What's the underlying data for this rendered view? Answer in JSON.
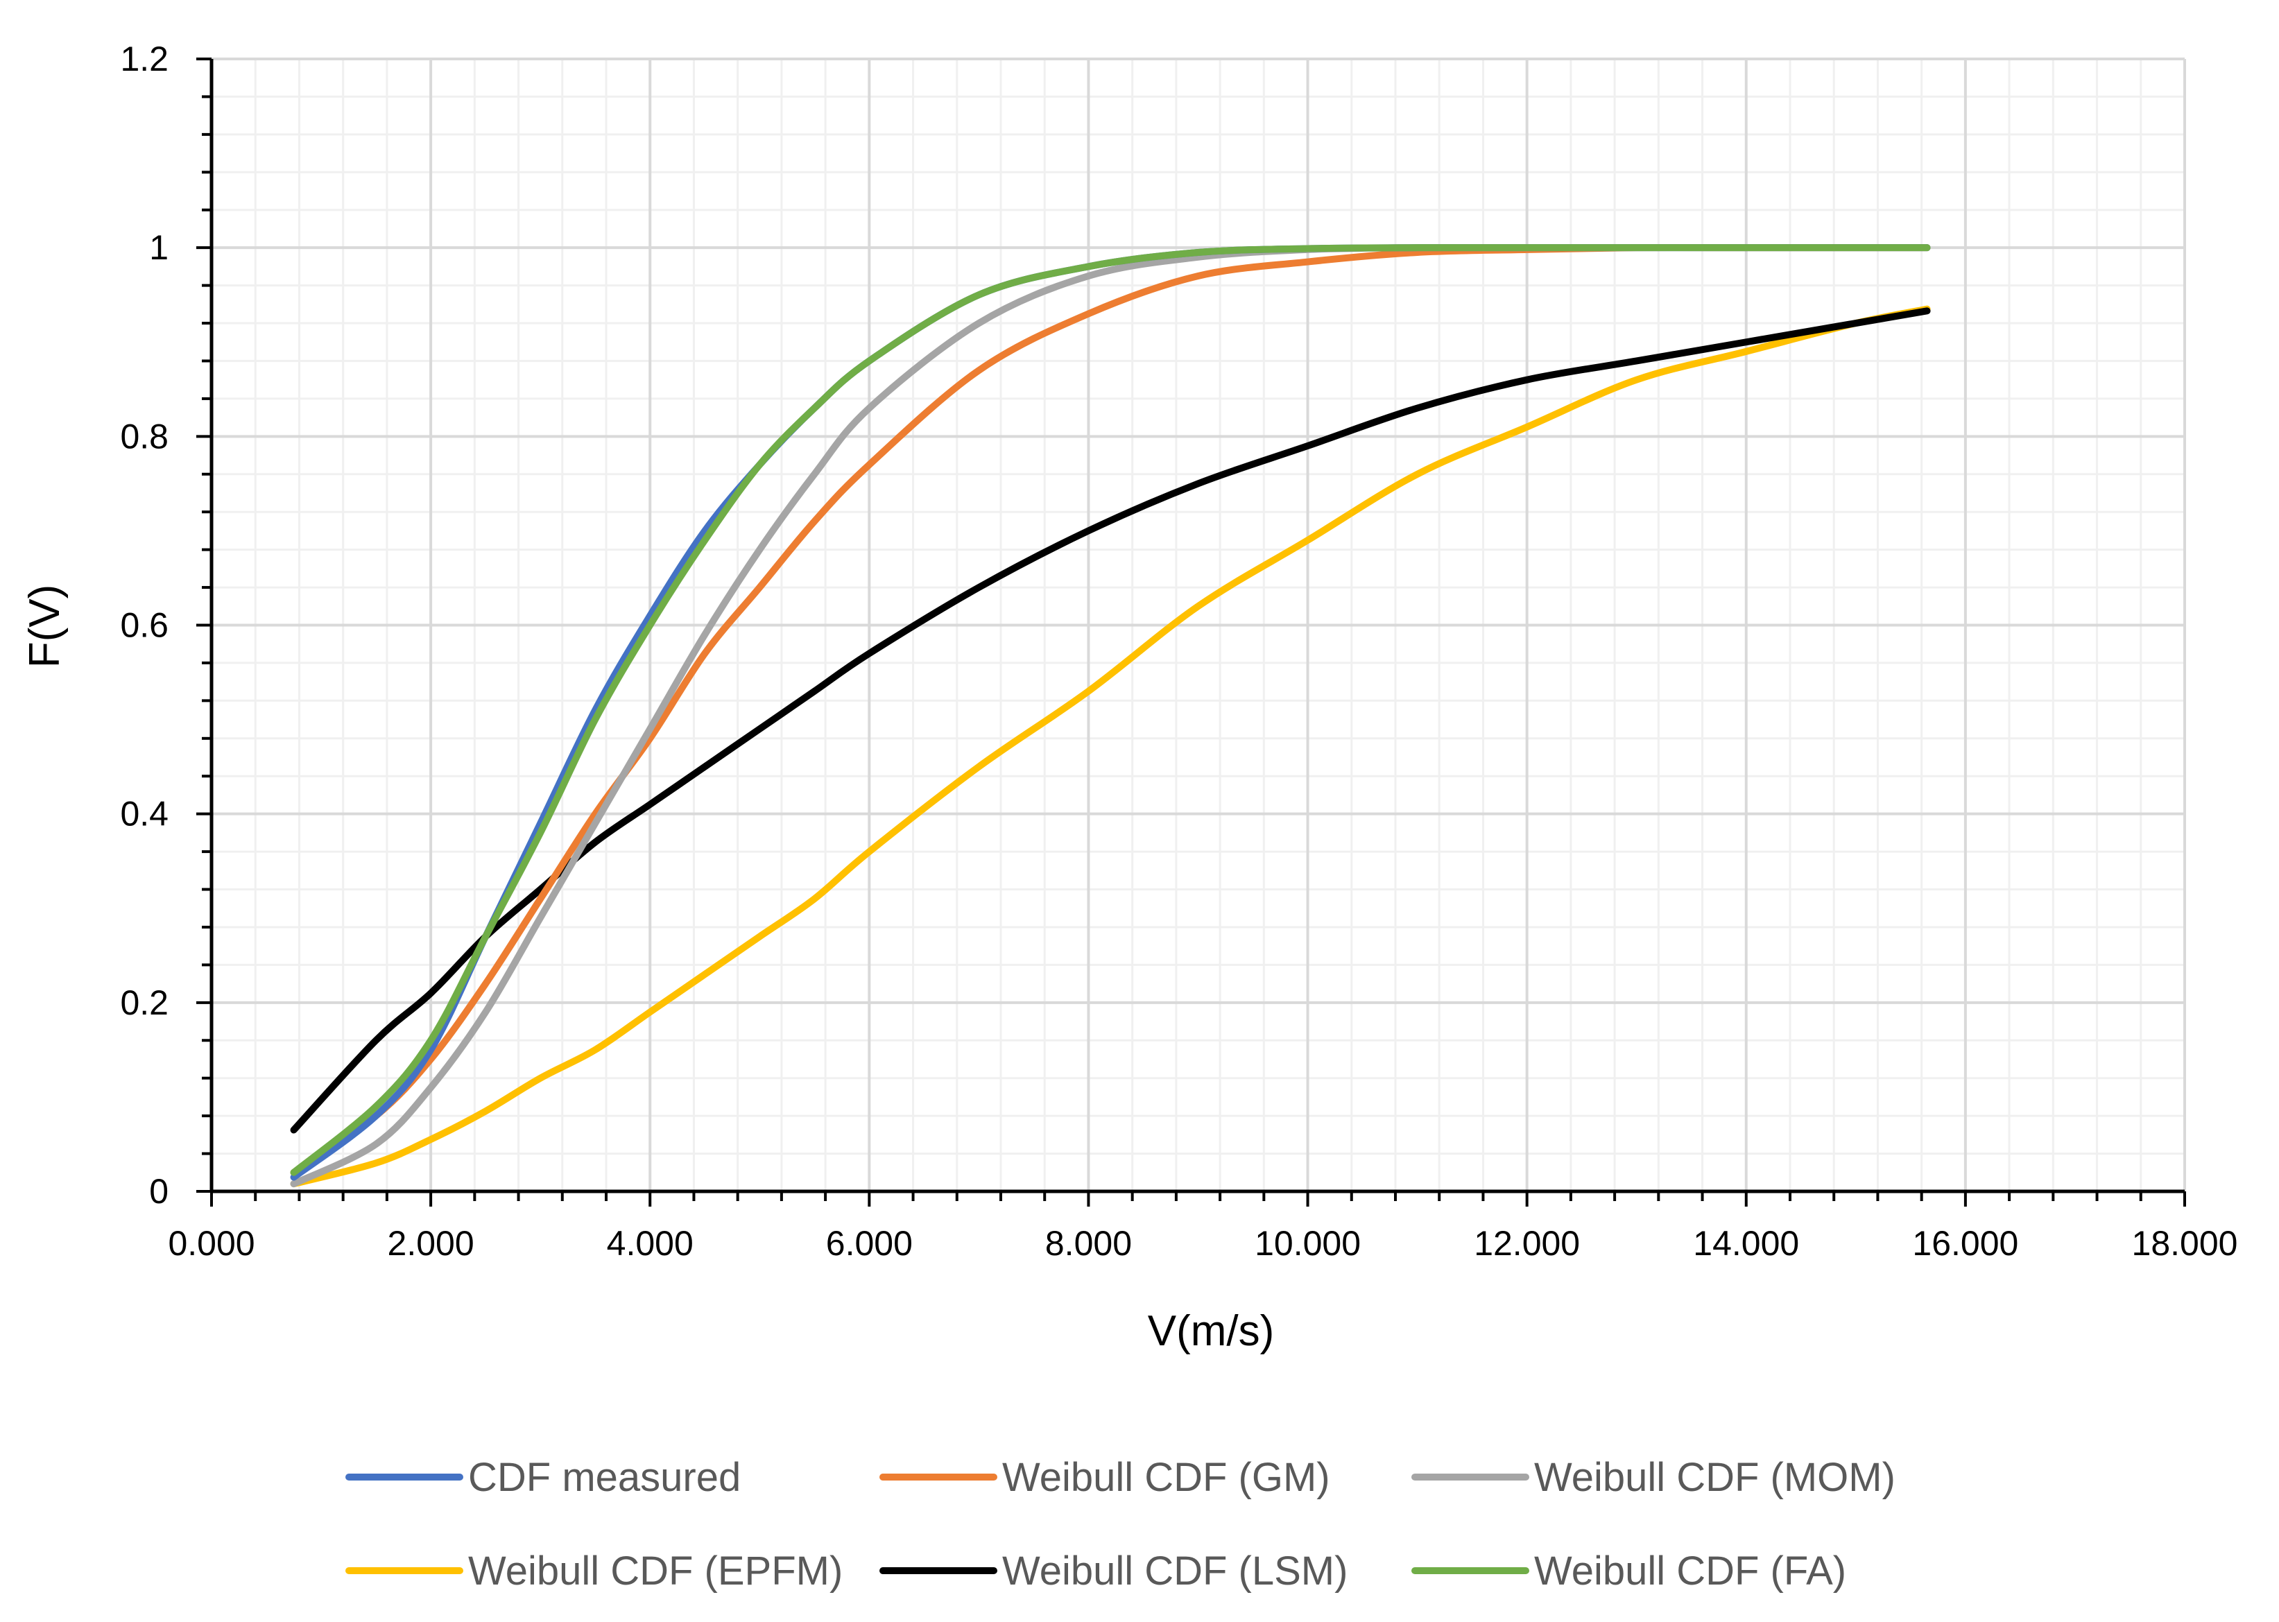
{
  "chart_data": {
    "type": "line",
    "title": "",
    "xlabel": "V(m/s)",
    "ylabel": "F(V)",
    "xlim": [
      0,
      18
    ],
    "ylim": [
      0,
      1.2
    ],
    "x_ticks": [
      "0.000",
      "2.000",
      "4.000",
      "6.000",
      "8.000",
      "10.000",
      "12.000",
      "14.000",
      "16.000",
      "18.000"
    ],
    "y_ticks": [
      "0",
      "0.2",
      "0.4",
      "0.6",
      "0.8",
      "1",
      "1.2"
    ],
    "grid": true,
    "legend_position": "bottom",
    "x": [
      0.75,
      1.5,
      2.0,
      2.5,
      3.0,
      3.5,
      4.0,
      4.5,
      5.0,
      5.5,
      6.0,
      7.0,
      8.0,
      9.0,
      10.0,
      11.0,
      12.0,
      13.0,
      14.0,
      15.0,
      15.65
    ],
    "series": [
      {
        "name": "CDF measured",
        "color": "#4472C4",
        "values": [
          0.015,
          0.08,
          0.15,
          0.27,
          0.39,
          0.51,
          0.61,
          0.7,
          0.77,
          0.83,
          0.88,
          0.95,
          0.98,
          0.995,
          0.999,
          1.0,
          1.0,
          1.0,
          1.0,
          1.0,
          1.0
        ]
      },
      {
        "name": "Weibull CDF (GM)",
        "color": "#ED7D31",
        "values": [
          0.02,
          0.08,
          0.14,
          0.22,
          0.31,
          0.4,
          0.48,
          0.57,
          0.64,
          0.71,
          0.77,
          0.87,
          0.93,
          0.97,
          0.985,
          0.995,
          0.998,
          1.0,
          1.0,
          1.0,
          1.0
        ]
      },
      {
        "name": "Weibull CDF (MOM)",
        "color": "#A5A5A5",
        "values": [
          0.008,
          0.05,
          0.11,
          0.19,
          0.29,
          0.39,
          0.49,
          0.59,
          0.68,
          0.76,
          0.83,
          0.92,
          0.97,
          0.99,
          0.998,
          1.0,
          1.0,
          1.0,
          1.0,
          1.0,
          1.0
        ]
      },
      {
        "name": "Weibull CDF (EPFM)",
        "color": "#FFC000",
        "values": [
          0.008,
          0.03,
          0.055,
          0.085,
          0.12,
          0.15,
          0.19,
          0.23,
          0.27,
          0.31,
          0.36,
          0.45,
          0.53,
          0.62,
          0.69,
          0.76,
          0.81,
          0.86,
          0.89,
          0.92,
          0.935
        ]
      },
      {
        "name": "Weibull CDF (LSM)",
        "color": "#000000",
        "values": [
          0.065,
          0.16,
          0.21,
          0.27,
          0.32,
          0.37,
          0.41,
          0.45,
          0.49,
          0.53,
          0.57,
          0.64,
          0.7,
          0.75,
          0.79,
          0.83,
          0.86,
          0.88,
          0.9,
          0.92,
          0.933
        ]
      },
      {
        "name": "Weibull CDF (FA)",
        "color": "#70AD47",
        "values": [
          0.02,
          0.09,
          0.16,
          0.27,
          0.38,
          0.5,
          0.6,
          0.69,
          0.77,
          0.83,
          0.88,
          0.95,
          0.98,
          0.995,
          0.999,
          1.0,
          1.0,
          1.0,
          1.0,
          1.0,
          1.0
        ]
      }
    ]
  }
}
